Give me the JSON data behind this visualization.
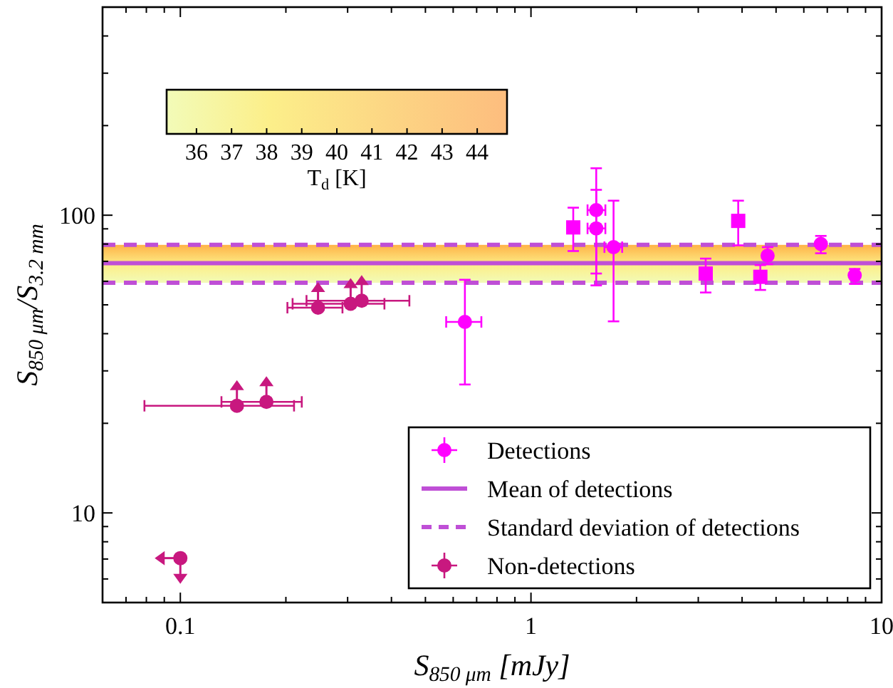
{
  "chart_data": {
    "type": "scatter",
    "annotations": [
      "36",
      "37",
      "38",
      "39",
      "40",
      "41",
      "42",
      "43",
      "44",
      "T$_{d}$ [K]"
    ],
    "xlabel": "S$_{850 μm}$ [mJy]",
    "ylabel": "S$_{850 μm}$/S$_{3.2 mm}$",
    "log": "xy",
    "grid": false,
    "legend": "bottom right",
    "xlim": [
      0.06,
      10
    ],
    "ylim": [
      5,
      500
    ],
    "xticks": [
      {
        "value": 0.07,
        "label": null
      },
      {
        "value": 0.08,
        "label": null
      },
      {
        "value": 0.09,
        "label": null
      },
      0.1,
      {
        "value": 0.2,
        "label": null
      },
      {
        "value": 0.3,
        "label": null
      },
      {
        "value": 0.4,
        "label": null
      },
      {
        "value": 0.5,
        "label": null
      },
      {
        "value": 0.6,
        "label": null
      },
      {
        "value": 0.7,
        "label": null
      },
      {
        "value": 0.8,
        "label": null
      },
      {
        "value": 0.9,
        "label": null
      },
      1,
      {
        "value": 2,
        "label": null
      },
      {
        "value": 3,
        "label": null
      },
      {
        "value": 4,
        "label": null
      },
      {
        "value": 5,
        "label": null
      },
      {
        "value": 6,
        "label": null
      },
      {
        "value": 7,
        "label": null
      },
      {
        "value": 8,
        "label": null
      },
      {
        "value": 9,
        "label": null
      },
      10
    ],
    "yticks": [
      {
        "value": 6,
        "label": null
      },
      {
        "value": 7,
        "label": null
      },
      {
        "value": 8,
        "label": null
      },
      {
        "value": 9,
        "label": null
      },
      10,
      {
        "value": 20,
        "label": null
      },
      {
        "value": 30,
        "label": null
      },
      {
        "value": 40,
        "label": null
      },
      {
        "value": 50,
        "label": null
      },
      {
        "value": 60,
        "label": null
      },
      {
        "value": 70,
        "label": null
      },
      {
        "value": 80,
        "label": null
      },
      {
        "value": 90,
        "label": null
      },
      100,
      {
        "value": 200,
        "label": null
      },
      {
        "value": 300,
        "label": null
      },
      {
        "value": 400,
        "label": null
      }
    ],
    "bands": [
      {
        "axis": "y",
        "from": 59.3,
        "to": 79.5,
        "color": "#ffb347"
      }
    ],
    "ref_lines": [
      {
        "axis": "y",
        "value": 69,
        "label": "Mean of detections",
        "color": "#bf4fd6",
        "line_style": "solid"
      },
      {
        "axis": "y",
        "value": 79.5,
        "label": "Standard deviation of detections",
        "color": "#bf4fd6",
        "line_style": "dashed"
      },
      {
        "axis": "y",
        "value": 59.3,
        "label": null,
        "color": "#bf4fd6",
        "line_style": "dashed"
      }
    ],
    "series": [
      {
        "name": "Detections",
        "color": "#ff00ff",
        "marker": "circle",
        "x": [
          1.535,
          1.535,
          1.72,
          4.73,
          6.71,
          8.38,
          0.648
        ],
        "values": [
          104,
          90.3,
          78.1,
          73.1,
          80.1,
          62.8,
          43.8
        ],
        "errors": [
          [
            63.7,
            143.8
          ],
          [
            58.1,
            121.7
          ],
          [
            44,
            111.9
          ],
          [
            68.5,
            78.1
          ],
          [
            74.5,
            85.2
          ],
          [
            58.8,
            66
          ],
          [
            27,
            60.7
          ]
        ],
        "xerrors": [
          [
            1.45,
            1.63
          ],
          [
            1.45,
            1.63
          ],
          [
            1.62,
            1.82
          ],
          null,
          null,
          null,
          [
            0.573,
            0.722
          ]
        ]
      },
      {
        "color": "#ff00ff",
        "marker": "square",
        "x": [
          1.32,
          3.15,
          3.9,
          4.51
        ],
        "values": [
          91,
          63.7,
          95.7,
          62.1
        ],
        "errors": [
          [
            75.8,
            106
          ],
          [
            55,
            71.5
          ],
          [
            79.2,
            111.9
          ],
          [
            56.1,
            68
          ]
        ]
      },
      {
        "name": "Non-detections",
        "color": "#c8187f",
        "marker": "circle",
        "x": [
          0.145,
          0.176,
          0.247,
          0.306,
          0.329
        ],
        "values": [
          22.9,
          23.6,
          48.9,
          50.4,
          51.6
        ],
        "xerrors": [
          [
            0.079,
            0.211
          ],
          [
            0.131,
            0.222
          ],
          [
            0.202,
            0.29
          ],
          [
            0.209,
            0.382
          ],
          [
            0.229,
            0.45
          ]
        ]
      },
      {
        "color": "#c8187f",
        "marker": "circle",
        "x": [
          0.1
        ],
        "values": [
          7.05
        ]
      }
    ]
  }
}
